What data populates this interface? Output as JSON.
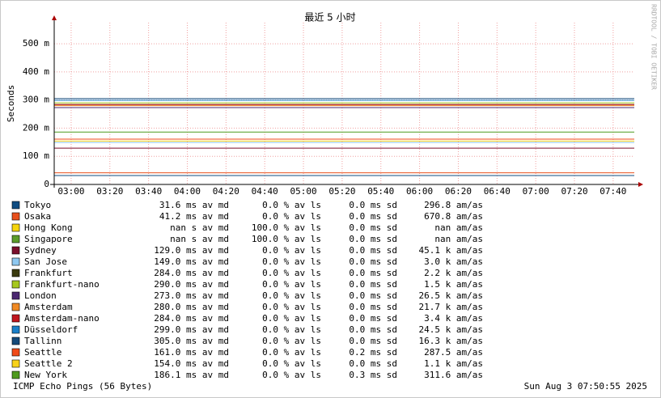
{
  "chart_data": {
    "type": "line",
    "title": "最近 5 小时",
    "y_label": "Seconds",
    "side_label": "RRDTOOL / TOBI OETIKER",
    "footer_left": "ICMP Echo Pings (56 Bytes)",
    "footer_right": "Sun Aug  3 07:50:55 2025",
    "grid": true,
    "ylim": [
      0,
      0.575
    ],
    "yticks": [
      0,
      {
        "value": 0.1,
        "label": "100 m"
      },
      {
        "value": 0.2,
        "label": "200 m"
      },
      {
        "value": 0.3,
        "label": "300 m"
      },
      {
        "value": 0.4,
        "label": "400 m"
      },
      {
        "value": 0.5,
        "label": "500 m"
      }
    ],
    "xlim": [
      171.25,
      470.92
    ],
    "xticks": [
      {
        "value": 180,
        "label": "03:00"
      },
      {
        "value": 200,
        "label": "03:20"
      },
      {
        "value": 220,
        "label": "03:40"
      },
      {
        "value": 240,
        "label": "04:00"
      },
      {
        "value": 260,
        "label": "04:20"
      },
      {
        "value": 280,
        "label": "04:40"
      },
      {
        "value": 300,
        "label": "05:00"
      },
      {
        "value": 320,
        "label": "05:20"
      },
      {
        "value": 340,
        "label": "05:40"
      },
      {
        "value": 360,
        "label": "06:00"
      },
      {
        "value": 380,
        "label": "06:20"
      },
      {
        "value": 400,
        "label": "06:40"
      },
      {
        "value": 420,
        "label": "07:00"
      },
      {
        "value": 440,
        "label": "07:20"
      },
      {
        "value": 460,
        "label": "07:40"
      }
    ],
    "series": [
      {
        "name": "Tokyo",
        "color": "#0f4c81",
        "values": [
          0.0316
        ],
        "value_labels": [
          "31.6 ms av md"
        ],
        "loss": "0.0 % av ls",
        "sd": "0.0 ms sd",
        "amas": "296.8   am/as"
      },
      {
        "name": "Osaka",
        "color": "#e8501d",
        "values": [
          0.0412
        ],
        "value_labels": [
          "41.2 ms av md"
        ],
        "loss": "0.0 % av ls",
        "sd": "0.0 ms sd",
        "amas": "670.8   am/as"
      },
      {
        "name": "Hong Kong",
        "color": "#f5d50e",
        "values": [
          null
        ],
        "value_labels": [
          "nan   s av md"
        ],
        "loss": "100.0 % av ls",
        "sd": "0.0 ms sd",
        "amas": "nan   am/as"
      },
      {
        "name": "Singapore",
        "color": "#5c9c2a",
        "values": [
          null
        ],
        "value_labels": [
          "nan   s av md"
        ],
        "loss": "100.0 % av ls",
        "sd": "0.0 ms sd",
        "amas": "nan   am/as"
      },
      {
        "name": "Sydney",
        "color": "#7a0e2b",
        "values": [
          0.129
        ],
        "value_labels": [
          "129.0 ms av md"
        ],
        "loss": "0.0 % av ls",
        "sd": "0.0 ms sd",
        "amas": "45.1 k am/as"
      },
      {
        "name": "San Jose",
        "color": "#8ec8f0",
        "values": [
          0.149
        ],
        "value_labels": [
          "149.0 ms av md"
        ],
        "loss": "0.0 % av ls",
        "sd": "0.0 ms sd",
        "amas": "3.0 k am/as"
      },
      {
        "name": "Frankfurt",
        "color": "#3a3a0e",
        "values": [
          0.284
        ],
        "value_labels": [
          "284.0 ms av md"
        ],
        "loss": "0.0 % av ls",
        "sd": "0.0 ms sd",
        "amas": "2.2 k am/as"
      },
      {
        "name": "Frankfurt-nano",
        "color": "#a6c81e",
        "values": [
          0.29
        ],
        "value_labels": [
          "290.0 ms av md"
        ],
        "loss": "0.0 % av ls",
        "sd": "0.0 ms sd",
        "amas": "1.5 k am/as"
      },
      {
        "name": "London",
        "color": "#4b2770",
        "values": [
          0.273
        ],
        "value_labels": [
          "273.0 ms av md"
        ],
        "loss": "0.0 % av ls",
        "sd": "0.0 ms sd",
        "amas": "26.5 k am/as"
      },
      {
        "name": "Amsterdam",
        "color": "#f08a24",
        "values": [
          0.28
        ],
        "value_labels": [
          "280.0 ms av md"
        ],
        "loss": "0.0 % av ls",
        "sd": "0.0 ms sd",
        "amas": "21.7 k am/as"
      },
      {
        "name": "Amsterdam-nano",
        "color": "#c0161e",
        "values": [
          0.284
        ],
        "value_labels": [
          "284.0 ms av md"
        ],
        "loss": "0.0 % av ls",
        "sd": "0.0 ms sd",
        "amas": "3.4 k am/as"
      },
      {
        "name": "Düsseldorf",
        "color": "#1a7fc8",
        "values": [
          0.299
        ],
        "value_labels": [
          "299.0 ms av md"
        ],
        "loss": "0.0 % av ls",
        "sd": "0.0 ms sd",
        "amas": "24.5 k am/as"
      },
      {
        "name": "Tallinn",
        "color": "#154a7a",
        "values": [
          0.305
        ],
        "value_labels": [
          "305.0 ms av md"
        ],
        "loss": "0.0 % av ls",
        "sd": "0.0 ms sd",
        "amas": "16.3 k am/as"
      },
      {
        "name": "Seattle",
        "color": "#f04a18",
        "values": [
          0.161
        ],
        "value_labels": [
          "161.0 ms av md"
        ],
        "loss": "0.0 % av ls",
        "sd": "0.2 ms sd",
        "amas": "287.5   am/as"
      },
      {
        "name": "Seattle 2",
        "color": "#f8d21a",
        "values": [
          0.154
        ],
        "value_labels": [
          "154.0 ms av md"
        ],
        "loss": "0.0 % av ls",
        "sd": "0.0 ms sd",
        "amas": "1.1 k am/as"
      },
      {
        "name": "New York",
        "color": "#4e9a1e",
        "values": [
          0.1861
        ],
        "value_labels": [
          "186.1 ms av md"
        ],
        "loss": "0.0 % av ls",
        "sd": "0.3 ms sd",
        "amas": "311.6   am/as"
      }
    ]
  }
}
